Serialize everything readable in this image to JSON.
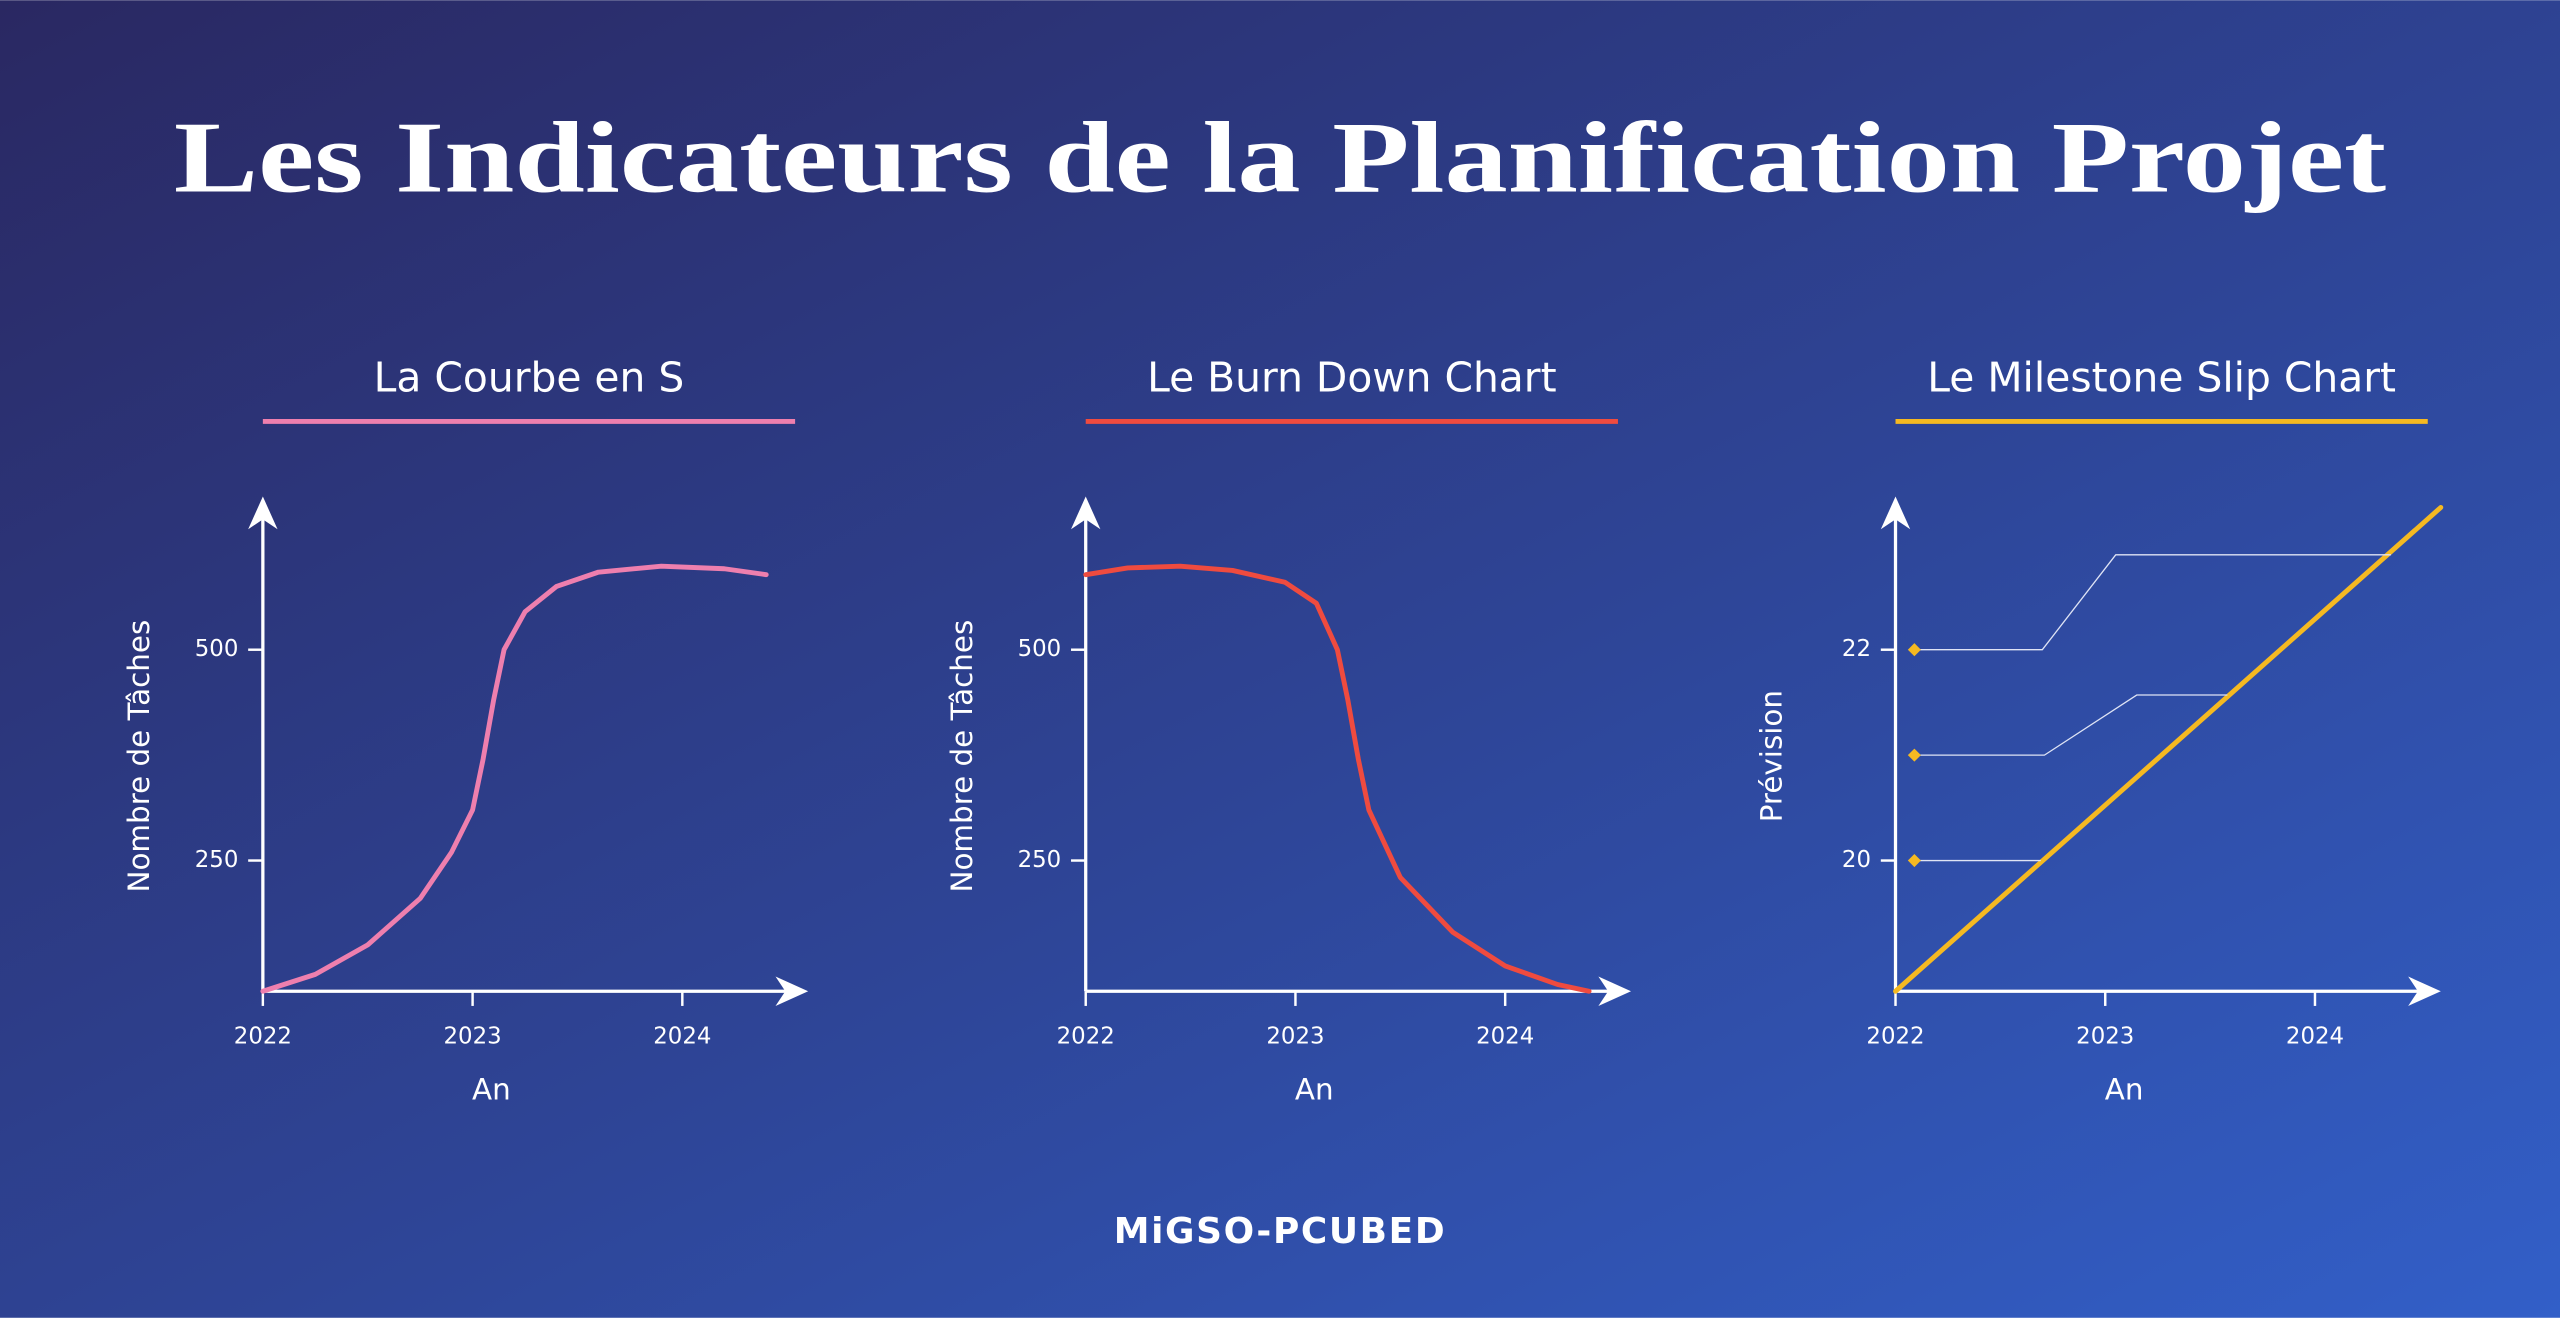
{
  "title": "Les Indicateurs de la Planification Projet",
  "footer": "MiGSO-PCUBED",
  "chart_data": [
    {
      "type": "line",
      "title": "La Courbe en S",
      "x_label": "An",
      "y_label": "Nombre de Tâches",
      "xlim": [
        2022,
        2024.6
      ],
      "xticks": [
        2022,
        2023,
        2024
      ],
      "ylim": [
        95,
        670
      ],
      "yticks": [
        250,
        500
      ],
      "series": [
        {
          "color": "#ee7fae",
          "x": [
            2022,
            2022.25,
            2022.5,
            2022.75,
            2022.9,
            2023,
            2023.05,
            2023.1,
            2023.15,
            2023.25,
            2023.4,
            2023.6,
            2023.9,
            2024.2,
            2024.4
          ],
          "values": [
            95,
            115,
            150,
            205,
            260,
            310,
            370,
            440,
            500,
            545,
            575,
            592,
            599,
            596,
            589
          ]
        }
      ]
    },
    {
      "type": "line",
      "title": "Le Burn Down Chart",
      "x_label": "An",
      "y_label": "Nombre de Tâches",
      "xlim": [
        2022,
        2024.6
      ],
      "xticks": [
        2022,
        2023,
        2024
      ],
      "ylim": [
        95,
        670
      ],
      "yticks": [
        250,
        500
      ],
      "series": [
        {
          "color": "#ef4b3f",
          "x": [
            2022,
            2022.2,
            2022.45,
            2022.7,
            2022.95,
            2023.1,
            2023.2,
            2023.25,
            2023.3,
            2023.35,
            2023.5,
            2023.75,
            2024,
            2024.25,
            2024.4
          ],
          "values": [
            589,
            597,
            599,
            594,
            580,
            555,
            500,
            440,
            370,
            310,
            230,
            165,
            125,
            103,
            95
          ]
        }
      ]
    },
    {
      "type": "line",
      "title": "Le Milestone Slip Chart",
      "x_label": "An",
      "y_label": "Prévision",
      "xlim": [
        2022,
        2024.6
      ],
      "xticks": [
        2022,
        2023,
        2024
      ],
      "ylim": [
        18.76,
        23.36
      ],
      "yticks": [
        20,
        22
      ],
      "series": [
        {
          "color": "#f5b921",
          "width": 3,
          "x": [
            2022,
            2024.6
          ],
          "values": [
            18.76,
            23.35
          ]
        },
        {
          "color": "#dfe4f5",
          "width": 0.8,
          "marker": "diamond",
          "marker_color": "#f5b921",
          "x": [
            2022.09,
            2022.7,
            2023.05,
            2024.36
          ],
          "values": [
            22,
            22,
            22.9,
            22.9
          ]
        },
        {
          "color": "#dfe4f5",
          "width": 0.8,
          "marker": "diamond",
          "marker_color": "#f5b921",
          "x": [
            2022.09,
            2022.71,
            2023.15,
            2023.58
          ],
          "values": [
            21,
            21,
            21.57,
            21.57
          ]
        },
        {
          "color": "#dfe4f5",
          "width": 0.8,
          "marker": "diamond",
          "marker_color": "#f5b921",
          "x": [
            2022.09,
            2022.69
          ],
          "values": [
            20,
            20
          ]
        }
      ]
    }
  ]
}
